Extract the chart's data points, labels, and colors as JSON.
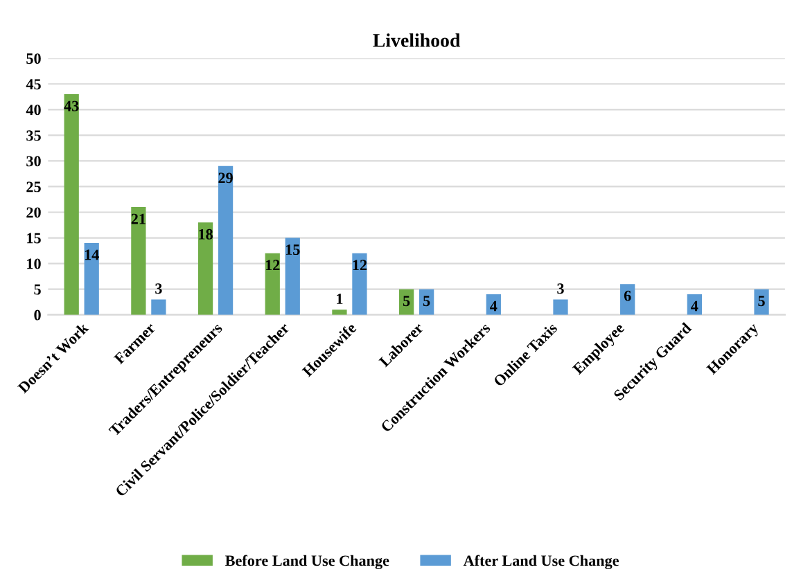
{
  "chart_data": {
    "type": "bar",
    "title": "Livelihood",
    "categories": [
      "Doesn’t Work",
      "Farmer",
      "Traders/Entrepreneurs",
      "Civil Servant/Police/Soldier/Teacher",
      "Housewife",
      "Laborer",
      "Construction Workers",
      "Online Taxis",
      "Employee",
      "Security Guard",
      "Honorary"
    ],
    "series": [
      {
        "name": "Before Land Use Change",
        "color": "#70ad47",
        "values": [
          43,
          21,
          18,
          12,
          1,
          5,
          null,
          null,
          null,
          null,
          null
        ]
      },
      {
        "name": "After Land Use Change",
        "color": "#5b9bd5",
        "values": [
          14,
          3,
          29,
          15,
          12,
          5,
          4,
          3,
          6,
          4,
          5
        ]
      }
    ],
    "ylim": [
      0,
      50
    ],
    "yticks": [
      0,
      5,
      10,
      15,
      20,
      25,
      30,
      35,
      40,
      45,
      50
    ],
    "grid": "y",
    "legend": "bottom",
    "data_labels": true
  }
}
